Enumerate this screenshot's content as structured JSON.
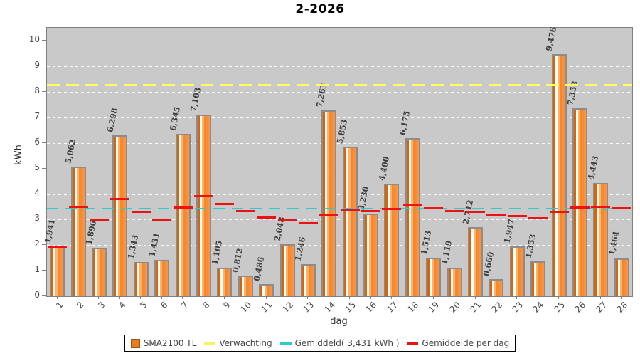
{
  "title": "2-2026",
  "y_axis": {
    "label": "kWh",
    "tick_labels": [
      "0",
      "1",
      "2",
      "3",
      "4",
      "5",
      "6",
      "7",
      "8",
      "9",
      "10"
    ]
  },
  "x_axis": {
    "label": "dag"
  },
  "legend": {
    "items": [
      {
        "swatch": "bar-swatch",
        "label": "SMA2100 TL"
      },
      {
        "swatch": "yellow-line",
        "label": "Verwachting"
      },
      {
        "swatch": "cyan-line",
        "label": "Gemiddeld( 3,431 kWh )"
      },
      {
        "swatch": "red-line",
        "label": "Gemiddelde per dag"
      }
    ]
  },
  "colors": {
    "plot_background": "#c9c9c9",
    "gridline": "#ffffff",
    "bar_main": "#f8831f",
    "bar_border": "#8c8c8c",
    "expected_line": "#ffff5e",
    "average_line": "#2ecccc",
    "per_day_line": "#ee1111",
    "axis_text": "#4a4a4a"
  },
  "chart_data": {
    "type": "bar",
    "title": "2-2026",
    "xlabel": "dag",
    "ylabel": "kWh",
    "ylim": [
      0,
      10.5
    ],
    "grid": true,
    "legend_position": "bottom",
    "categories": [
      "1",
      "2",
      "3",
      "4",
      "5",
      "6",
      "7",
      "8",
      "9",
      "10",
      "11",
      "12",
      "13",
      "14",
      "15",
      "16",
      "17",
      "18",
      "19",
      "20",
      "21",
      "22",
      "23",
      "24",
      "25",
      "26",
      "27",
      "28"
    ],
    "series": [
      {
        "name": "SMA2100 TL",
        "type": "bar",
        "values": [
          1.941,
          5.062,
          1.896,
          6.298,
          1.343,
          1.431,
          6.345,
          7.103,
          1.105,
          0.812,
          0.486,
          2.048,
          1.246,
          7.263,
          5.853,
          3.23,
          4.4,
          6.175,
          1.513,
          1.119,
          2.712,
          0.66,
          1.947,
          1.353,
          9.476,
          7.353,
          4.443,
          1.464
        ],
        "labels": [
          "1,941",
          "5,062",
          "1,896",
          "6,298",
          "1,343",
          "1,431",
          "6,345",
          "7,103",
          "1,105",
          "0,812",
          "0,486",
          "2,048",
          "1,246",
          "7,263",
          "5,853",
          "3,230",
          "4,400",
          "6,175",
          "1,513",
          "1,119",
          "2,712",
          "0,660",
          "1,947",
          "1,353",
          "9,476",
          "7,353",
          "4,443",
          "1,464"
        ]
      },
      {
        "name": "Gemiddelde per dag",
        "type": "dash-segments",
        "values": [
          1.941,
          3.502,
          2.966,
          3.799,
          3.308,
          2.995,
          3.474,
          3.927,
          3.614,
          3.334,
          3.075,
          2.989,
          2.855,
          3.17,
          3.349,
          3.341,
          3.404,
          3.558,
          3.45,
          3.333,
          3.304,
          3.184,
          3.13,
          3.056,
          3.313,
          3.468,
          3.504,
          3.431
        ]
      }
    ],
    "reference_lines": [
      {
        "name": "Verwachting",
        "value": 8.28,
        "style": "dashed",
        "color": "#ffff5e"
      },
      {
        "name": "Gemiddeld",
        "value": 3.431,
        "style": "dashed",
        "color": "#2ecccc"
      }
    ]
  }
}
